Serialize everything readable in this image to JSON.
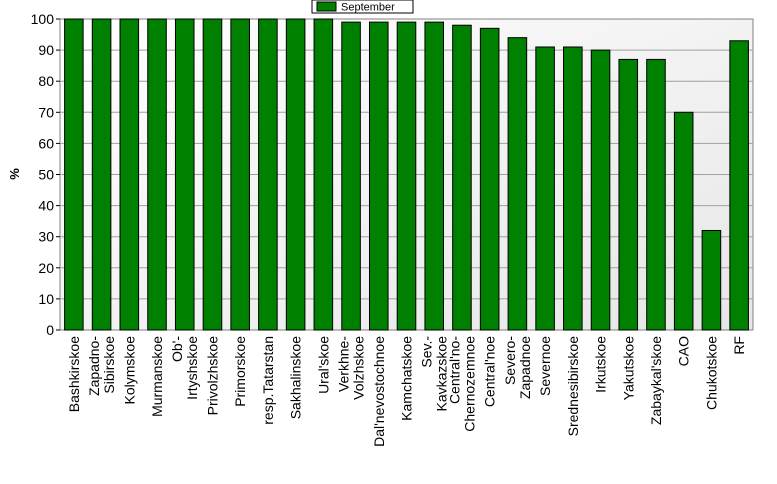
{
  "chart_data": {
    "type": "bar",
    "title": "",
    "xlabel": "",
    "ylabel": "%",
    "ylim": [
      0,
      100
    ],
    "yticks": [
      0,
      10,
      20,
      30,
      40,
      50,
      60,
      70,
      80,
      90,
      100
    ],
    "grid": true,
    "legend": "top-center",
    "bar_color": "#008000",
    "plot_background": "#efefef",
    "categories": [
      "Bashkirskoe",
      "Zapadno-\nSibirskoe",
      "Kolymskoe",
      "Murmanskoe",
      "Ob'-\nIrtyshskoe",
      "Privolzhskoe",
      "Primorskoe",
      "resp.Tatarstan",
      "Sakhalinskoe",
      "Ural'skoe",
      "Verkhne-\nVolzhskoe",
      "Dal'nevostochnoe",
      "Kamchatskoe",
      "Sev.-\nKavkazskoe",
      "Central'no-\nChernozemnoe",
      "Central'noe",
      "Severo-\nZapadnoe",
      "Severnoe",
      "Srednesibirskoe",
      "Irkutskoe",
      "Yakutskoe",
      "Zabaykal'skoe",
      "CAO",
      "Chukotskoe",
      "RF"
    ],
    "series": [
      {
        "name": "September",
        "values": [
          100,
          100,
          100,
          100,
          100,
          100,
          100,
          100,
          100,
          100,
          99,
          99,
          99,
          99,
          98,
          97,
          94,
          91,
          91,
          90,
          87,
          87,
          70,
          32,
          93
        ]
      }
    ]
  }
}
